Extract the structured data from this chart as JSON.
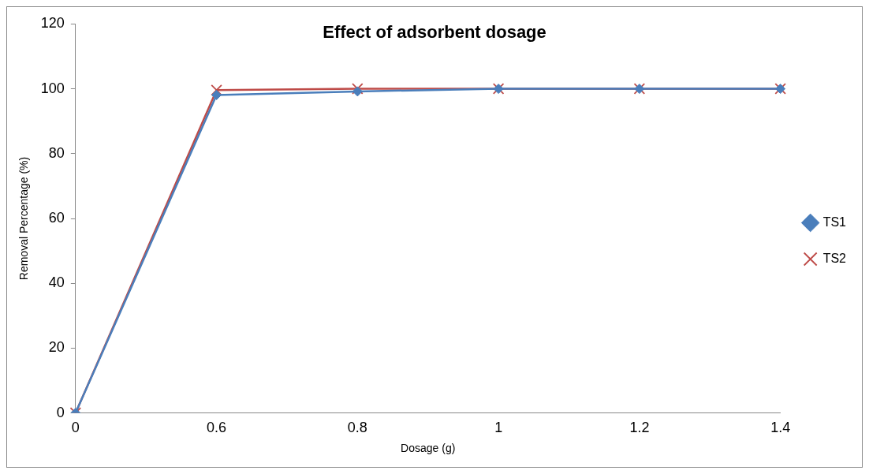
{
  "chart_data": {
    "type": "line",
    "title": "Effect of adsorbent dosage",
    "xlabel": "Dosage (g)",
    "ylabel": "Removal Percentage (%)",
    "categories": [
      "0",
      "0.6",
      "0.8",
      "1",
      "1.2",
      "1.4"
    ],
    "series": [
      {
        "name": "TS1",
        "color": "#4a7ebb",
        "marker": "diamond",
        "values": [
          0,
          98.1,
          99.2,
          100,
          100,
          100
        ]
      },
      {
        "name": "TS2",
        "color": "#be4b48",
        "marker": "cross",
        "values": [
          0,
          99.6,
          100,
          100,
          100,
          100
        ]
      }
    ],
    "ylim": [
      0,
      120
    ],
    "yticks": [
      0,
      20,
      40,
      60,
      80,
      100,
      120
    ],
    "grid": false,
    "legend": "right"
  }
}
